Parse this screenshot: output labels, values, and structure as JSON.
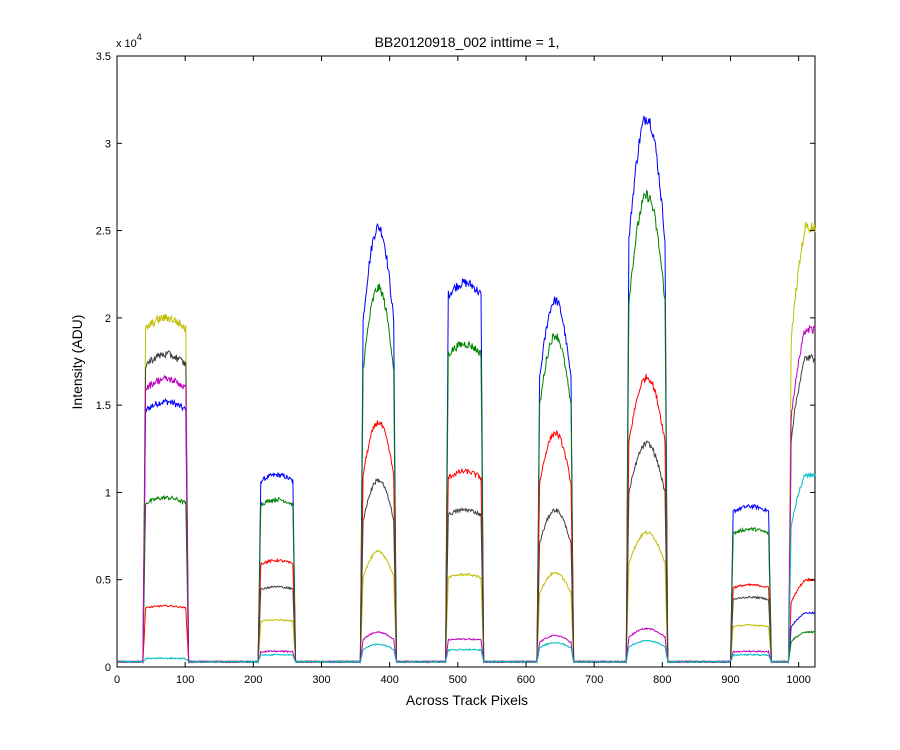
{
  "chart_data": {
    "type": "line",
    "title": "BB20120918_002 inttime = 1,",
    "xlabel": "Across Track Pixels",
    "ylabel": "Intensity (ADU)",
    "y_multiplier_label": "x 10",
    "y_multiplier_exponent": "4",
    "xlim": [
      0,
      1024
    ],
    "ylim": [
      0,
      35000
    ],
    "x_ticks": [
      0,
      100,
      200,
      300,
      400,
      500,
      600,
      700,
      800,
      900,
      1000
    ],
    "x_tick_labels": [
      "0",
      "100",
      "200",
      "300",
      "400",
      "500",
      "600",
      "700",
      "800",
      "900",
      "1000"
    ],
    "y_ticks": [
      0,
      5000,
      10000,
      15000,
      20000,
      25000,
      30000,
      35000
    ],
    "y_tick_labels": [
      "0",
      "0.5",
      "1",
      "1.5",
      "2",
      "2.5",
      "3",
      "3.5"
    ],
    "grid": false,
    "legend": "none",
    "baseline": 300,
    "segments": [
      {
        "x_start": 38,
        "x_end": 105,
        "shape": "flat"
      },
      {
        "x_start": 207,
        "x_end": 262,
        "shape": "flat"
      },
      {
        "x_start": 357,
        "x_end": 410,
        "shape": "peak"
      },
      {
        "x_start": 482,
        "x_end": 538,
        "shape": "flat"
      },
      {
        "x_start": 616,
        "x_end": 670,
        "shape": "peak"
      },
      {
        "x_start": 747,
        "x_end": 808,
        "shape": "peak"
      },
      {
        "x_start": 900,
        "x_end": 960,
        "shape": "flat"
      },
      {
        "x_start": 985,
        "x_end": 1024,
        "shape": "ramp"
      }
    ],
    "series": [
      {
        "color": "#0000ff",
        "peaks": [
          15200,
          11000,
          25200,
          22000,
          21000,
          31500,
          9200,
          3100
        ]
      },
      {
        "color": "#008000",
        "peaks": [
          9700,
          9600,
          21700,
          18500,
          19000,
          27000,
          7900,
          2000
        ]
      },
      {
        "color": "#ff0000",
        "peaks": [
          3500,
          6100,
          14000,
          11200,
          13400,
          16600,
          4700,
          5000
        ]
      },
      {
        "color": "#bfbf00",
        "peaks": [
          20000,
          2700,
          6600,
          5300,
          5400,
          7700,
          2400,
          25200
        ]
      },
      {
        "color": "#404040",
        "peaks": [
          17900,
          4600,
          10700,
          9000,
          9000,
          12800,
          4000,
          17700
        ]
      },
      {
        "color": "#bf00bf",
        "peaks": [
          16500,
          900,
          2000,
          1600,
          1800,
          2200,
          900,
          19300
        ]
      },
      {
        "color": "#00bfbf",
        "peaks": [
          500,
          700,
          1300,
          1000,
          1400,
          1500,
          700,
          11000
        ]
      }
    ]
  }
}
